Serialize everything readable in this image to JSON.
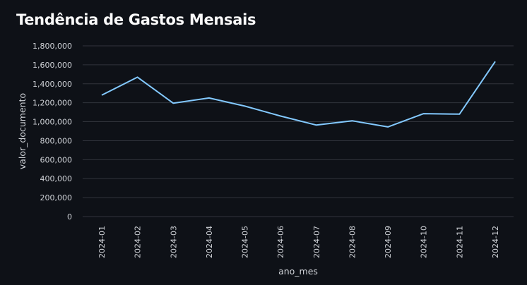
{
  "page": {
    "title": "Tendência de Gastos Mensais"
  },
  "chart_data": {
    "type": "line",
    "title": "Tendência de Gastos Mensais",
    "xlabel": "ano_mes",
    "ylabel": "valor_documento",
    "categories": [
      "2024-01",
      "2024-02",
      "2024-03",
      "2024-04",
      "2024-05",
      "2024-06",
      "2024-07",
      "2024-08",
      "2024-09",
      "2024-10",
      "2024-11",
      "2024-12"
    ],
    "series": [
      {
        "values": [
          1280000,
          1470000,
          1195000,
          1250000,
          1165000,
          1060000,
          965000,
          1010000,
          945000,
          1085000,
          1080000,
          1635000
        ],
        "color": "#83c9ff"
      }
    ],
    "ylim": [
      0,
      1800000
    ],
    "yticks": [
      0,
      200000,
      400000,
      600000,
      800000,
      1000000,
      1200000,
      1400000,
      1600000,
      1800000
    ],
    "ytick_labels": [
      "0",
      "200,000",
      "400,000",
      "600,000",
      "800,000",
      "1,000,000",
      "1,200,000",
      "1,400,000",
      "1,600,000",
      "1,800,000"
    ],
    "grid": true
  }
}
